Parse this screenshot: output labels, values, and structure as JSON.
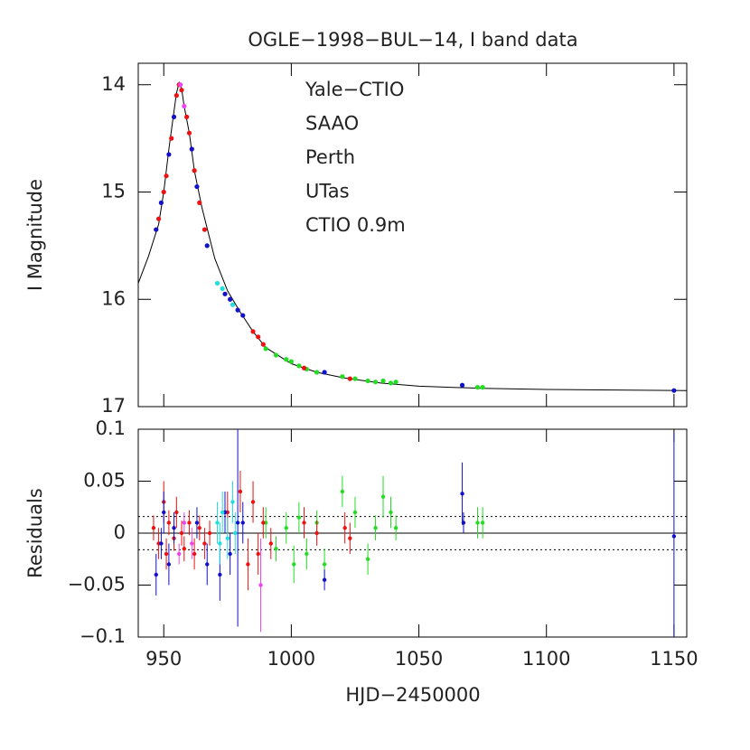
{
  "chart_data": [
    {
      "type": "scatter",
      "title": "OGLE−1998−BUL−14, I band data",
      "ylabel": "I Magnitude",
      "xlim": [
        940,
        1155
      ],
      "ylim": [
        17,
        13.8
      ],
      "yticks": [
        14,
        15,
        16,
        17
      ],
      "model": {
        "x": [
          940,
          944,
          948,
          950,
          952,
          954,
          955,
          956,
          957,
          958,
          960,
          962,
          965,
          970,
          975,
          980,
          985,
          990,
          1000,
          1010,
          1020,
          1035,
          1050,
          1075,
          1100,
          1155
        ],
        "values": [
          15.85,
          15.6,
          15.3,
          15.0,
          14.6,
          14.25,
          14.08,
          13.98,
          14.04,
          14.2,
          14.45,
          14.8,
          15.15,
          15.62,
          15.92,
          16.12,
          16.3,
          16.45,
          16.6,
          16.68,
          16.73,
          16.78,
          16.81,
          16.83,
          16.84,
          16.85
        ]
      },
      "series": [
        {
          "name": "Yale−CTIO",
          "color": "#22dd22",
          "x": [
            990,
            994,
            998,
            1000,
            1003,
            1006,
            1010,
            1020,
            1025,
            1030,
            1033,
            1036,
            1039,
            1041,
            1073,
            1075
          ],
          "values": [
            16.46,
            16.52,
            16.56,
            16.58,
            16.62,
            16.65,
            16.68,
            16.72,
            16.74,
            16.76,
            16.77,
            16.76,
            16.78,
            16.77,
            16.82,
            16.82
          ]
        },
        {
          "name": "SAAO",
          "color": "#ee1111",
          "x": [
            948,
            950,
            951,
            953,
            955,
            956,
            957,
            959,
            960,
            962,
            964,
            966,
            985,
            987,
            989,
            1005,
            1023
          ],
          "values": [
            15.25,
            15.0,
            14.85,
            14.5,
            14.1,
            14.0,
            14.05,
            14.3,
            14.45,
            14.8,
            15.1,
            15.35,
            16.3,
            16.35,
            16.42,
            16.64,
            16.74
          ]
        },
        {
          "name": "Perth",
          "color": "#ee44ee",
          "x": [
            956.5,
            958,
            961
          ],
          "values": [
            14.0,
            14.2,
            14.6
          ]
        },
        {
          "name": "UTas",
          "color": "#1111cc",
          "x": [
            947,
            949,
            952,
            954,
            961,
            963,
            967,
            974,
            976,
            979,
            981,
            1013,
            1067,
            1150
          ],
          "values": [
            15.35,
            15.1,
            14.65,
            14.3,
            14.6,
            14.95,
            15.5,
            15.95,
            16.0,
            16.1,
            16.15,
            16.68,
            16.8,
            16.85
          ]
        },
        {
          "name": "CTIO 0.9m",
          "color": "#22dddd",
          "x": [
            971,
            973,
            977
          ],
          "values": [
            15.85,
            15.9,
            16.05
          ]
        }
      ]
    },
    {
      "type": "errorbar",
      "ylabel": "Residuals",
      "xlabel": "HJD−2450000",
      "xlim": [
        940,
        1155
      ],
      "ylim": [
        -0.1,
        0.1
      ],
      "xticks": [
        950,
        1000,
        1050,
        1100,
        1150
      ],
      "yticks": [
        {
          "value": -0.1,
          "label": "−0.1"
        },
        {
          "value": -0.05,
          "label": "−0.05"
        },
        0,
        0.05,
        0.1
      ],
      "zero_line": 0,
      "dotted_lines": [
        -0.016,
        0.016
      ],
      "series": [
        {
          "color": "#22dd22",
          "x": [
            990,
            994,
            998,
            1001,
            1003,
            1006,
            1010,
            1013,
            1020,
            1025,
            1030,
            1033,
            1036,
            1039,
            1041,
            1073,
            1075
          ],
          "values": [
            0.01,
            -0.015,
            0.005,
            -0.03,
            0.015,
            -0.02,
            0.01,
            -0.03,
            0.04,
            0.02,
            -0.025,
            0.005,
            0.035,
            0.02,
            0.005,
            0.01,
            0.01
          ],
          "errors": [
            0.015,
            0.012,
            0.015,
            0.018,
            0.015,
            0.015,
            0.012,
            0.015,
            0.015,
            0.015,
            0.015,
            0.012,
            0.02,
            0.015,
            0.012,
            0.015,
            0.015
          ]
        },
        {
          "color": "#ee1111",
          "x": [
            946,
            948,
            950,
            951,
            952,
            954,
            955,
            957,
            958,
            960,
            962,
            964,
            966,
            968,
            975,
            980,
            983,
            985,
            987,
            989,
            992,
            1005,
            1010,
            1021,
            1023
          ],
          "values": [
            0.005,
            -0.01,
            0.03,
            -0.02,
            0.01,
            -0.005,
            0.02,
            0.0,
            -0.015,
            0.01,
            -0.02,
            0.005,
            -0.01,
            0.0,
            0.02,
            0.04,
            -0.03,
            0.03,
            -0.02,
            0.01,
            -0.01,
            0.01,
            0.0,
            0.005,
            -0.005
          ],
          "errors": [
            0.012,
            0.015,
            0.02,
            0.015,
            0.012,
            0.012,
            0.015,
            0.012,
            0.012,
            0.012,
            0.015,
            0.012,
            0.015,
            0.012,
            0.02,
            0.02,
            0.025,
            0.02,
            0.02,
            0.015,
            0.015,
            0.015,
            0.012,
            0.015,
            0.015
          ]
        },
        {
          "color": "#ee44ee",
          "x": [
            956,
            958,
            961,
            988
          ],
          "values": [
            -0.02,
            0.01,
            -0.01,
            -0.05
          ],
          "errors": [
            0.01,
            0.01,
            0.015,
            0.045
          ]
        },
        {
          "color": "#1111cc",
          "x": [
            947,
            949,
            950,
            952,
            954,
            963,
            967,
            972,
            974,
            976,
            979,
            981,
            1013,
            1067,
            1067.5,
            1150
          ],
          "values": [
            -0.04,
            -0.01,
            0.02,
            -0.03,
            0.005,
            0.01,
            -0.03,
            -0.04,
            0.02,
            -0.02,
            0.01,
            0.01,
            -0.045,
            0.038,
            0.01,
            -0.003
          ],
          "errors": [
            0.02,
            0.015,
            0.02,
            0.02,
            0.015,
            0.015,
            0.02,
            0.025,
            0.02,
            0.02,
            0.1,
            0.02,
            0.01,
            0.03,
            0.01,
            0.1
          ]
        },
        {
          "color": "#22dddd",
          "x": [
            971,
            972,
            973,
            975,
            977,
            978
          ],
          "values": [
            0.01,
            -0.01,
            0.02,
            -0.005,
            0.03,
            0.0
          ],
          "errors": [
            0.02,
            0.02,
            0.02,
            0.02,
            0.02,
            0.02
          ]
        }
      ]
    }
  ]
}
